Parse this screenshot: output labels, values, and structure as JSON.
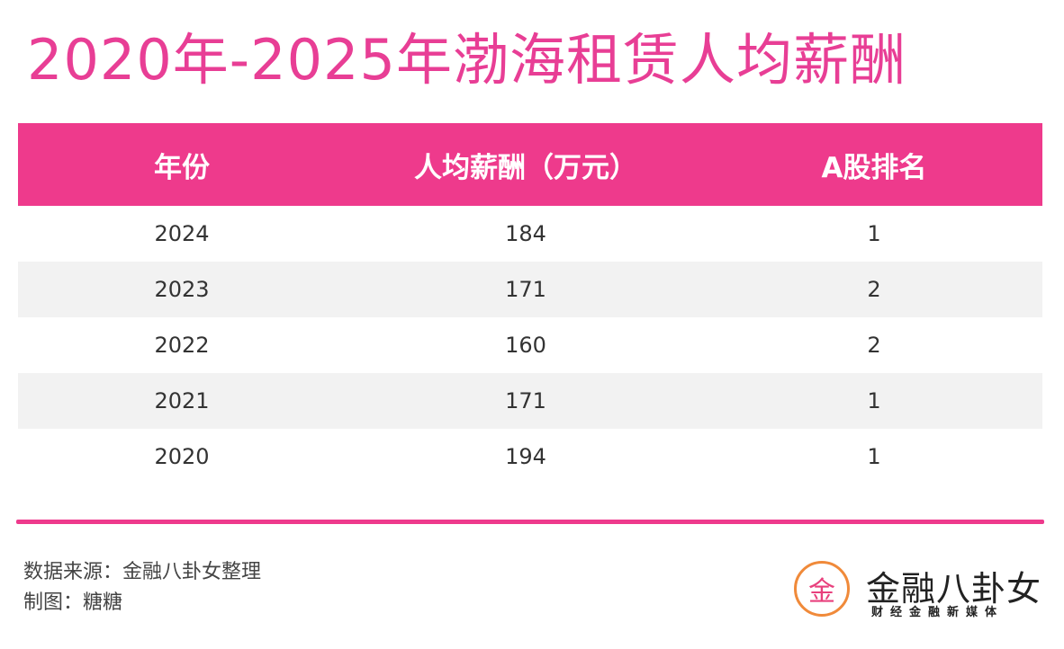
{
  "title": "2020年-2025年渤海租赁人均薪酬",
  "table": {
    "headers": [
      "年份",
      "人均薪酬（万元）",
      "A股排名"
    ],
    "rows": [
      [
        "2024",
        "184",
        "1"
      ],
      [
        "2023",
        "171",
        "2"
      ],
      [
        "2022",
        "160",
        "2"
      ],
      [
        "2021",
        "171",
        "1"
      ],
      [
        "2020",
        "194",
        "1"
      ]
    ]
  },
  "footer": {
    "source": "数据来源：金融八卦女整理",
    "maker": "制图：糖糖"
  },
  "logo": {
    "glyph": "金",
    "name": "金融八卦女",
    "tagline": "财经金融新媒体"
  },
  "colors": {
    "accent": "#ee3a8c",
    "title": "#e83e95",
    "row_alt": "#f2f2f2",
    "logo_ring": "#f08a3a"
  }
}
